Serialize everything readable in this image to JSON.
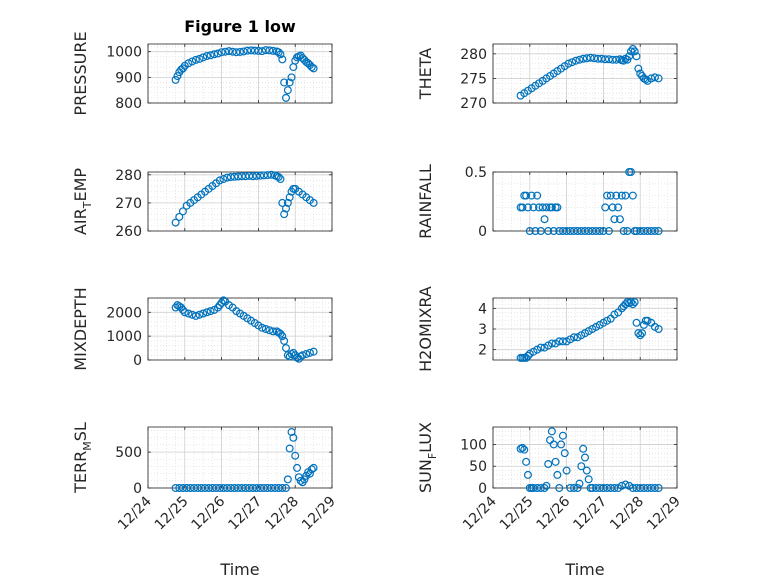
{
  "figure": {
    "title": "Figure 1 low",
    "xlabel": "Time",
    "x_tick_labels": [
      "12/24",
      "12/25",
      "12/26",
      "12/27",
      "12/28",
      "12/29"
    ],
    "marker_color": "#0072BD"
  },
  "chart_data": [
    {
      "type": "scatter",
      "ylabel": "PRESSURE",
      "title": "Figure 1 low",
      "xlim": [
        "12/24",
        "12/29"
      ],
      "ylim": [
        800,
        1030
      ],
      "yticks": [
        800,
        900,
        1000
      ],
      "grid": true,
      "marker": "open-circle",
      "x": [
        24.75,
        24.8,
        24.85,
        24.9,
        24.95,
        25.0,
        25.1,
        25.2,
        25.3,
        25.4,
        25.5,
        25.6,
        25.7,
        25.8,
        25.9,
        26.0,
        26.1,
        26.2,
        26.3,
        26.4,
        26.5,
        26.6,
        26.7,
        26.8,
        26.9,
        27.0,
        27.1,
        27.2,
        27.3,
        27.4,
        27.5,
        27.55,
        27.6,
        27.65,
        27.7,
        27.75,
        27.8,
        27.85,
        27.9,
        27.95,
        28.0,
        28.05,
        28.1,
        28.15,
        28.2,
        28.25,
        28.3,
        28.35,
        28.4,
        28.45,
        28.5
      ],
      "y": [
        890,
        905,
        920,
        930,
        935,
        945,
        955,
        962,
        968,
        972,
        978,
        983,
        986,
        990,
        993,
        998,
        1000,
        1002,
        1000,
        998,
        999,
        1001,
        1004,
        1005,
        1004,
        1003,
        1002,
        1006,
        1005,
        1003,
        1001,
        998,
        990,
        970,
        880,
        820,
        850,
        880,
        900,
        940,
        965,
        978,
        982,
        985,
        975,
        968,
        960,
        955,
        948,
        940,
        935
      ],
      "series": [
        {
          "name": "",
          "color": "#0072BD"
        }
      ]
    },
    {
      "type": "scatter",
      "ylabel": "THETA",
      "xlim": [
        "12/24",
        "12/29"
      ],
      "ylim": [
        270,
        282
      ],
      "yticks": [
        270,
        275,
        280
      ],
      "grid": true,
      "marker": "open-circle",
      "x": [
        24.75,
        24.85,
        24.95,
        25.05,
        25.15,
        25.25,
        25.35,
        25.45,
        25.55,
        25.65,
        25.75,
        25.85,
        25.95,
        26.05,
        26.15,
        26.25,
        26.35,
        26.45,
        26.55,
        26.65,
        26.75,
        26.85,
        26.95,
        27.05,
        27.15,
        27.25,
        27.35,
        27.45,
        27.5,
        27.55,
        27.6,
        27.65,
        27.7,
        27.75,
        27.8,
        27.85,
        27.9,
        27.95,
        28.0,
        28.05,
        28.1,
        28.15,
        28.2,
        28.3,
        28.4,
        28.5
      ],
      "y": [
        271.5,
        272,
        272.5,
        273,
        273.5,
        274,
        274.5,
        275,
        275.5,
        276,
        276.5,
        277,
        277.5,
        278,
        278.3,
        278.6,
        278.8,
        279,
        279.1,
        279.2,
        279.1,
        279,
        279,
        278.9,
        278.9,
        278.8,
        278.8,
        278.9,
        278.7,
        278.6,
        279,
        278.8,
        279.5,
        280.5,
        281,
        280.5,
        279.5,
        277,
        276,
        275.5,
        275,
        274.8,
        274.5,
        275,
        275.2,
        275
      ],
      "series": [
        {
          "name": "",
          "color": "#0072BD"
        }
      ]
    },
    {
      "type": "scatter",
      "ylabel": "AIR_TEMP",
      "ylabel_main": "AIR",
      "ylabel_sub": "T",
      "ylabel_tail": "EMP",
      "xlim": [
        "12/24",
        "12/29"
      ],
      "ylim": [
        260,
        281
      ],
      "yticks": [
        260,
        270,
        280
      ],
      "grid": true,
      "marker": "open-circle",
      "x": [
        24.75,
        24.85,
        24.95,
        25.05,
        25.15,
        25.25,
        25.35,
        25.45,
        25.55,
        25.65,
        25.75,
        25.85,
        25.95,
        26.05,
        26.15,
        26.25,
        26.35,
        26.45,
        26.55,
        26.65,
        26.75,
        26.85,
        26.95,
        27.05,
        27.15,
        27.25,
        27.35,
        27.45,
        27.5,
        27.55,
        27.6,
        27.65,
        27.7,
        27.75,
        27.8,
        27.85,
        27.9,
        27.95,
        28.0,
        28.1,
        28.2,
        28.3,
        28.4,
        28.5
      ],
      "y": [
        263,
        265,
        267,
        269,
        270,
        271,
        272,
        273,
        274,
        275,
        276,
        277,
        278,
        278.5,
        279,
        279.2,
        279.3,
        279.4,
        279.5,
        279.5,
        279.6,
        279.5,
        279.6,
        279.7,
        279.8,
        279.9,
        280,
        279.8,
        279.5,
        279.2,
        278.5,
        270,
        266,
        268,
        270,
        272,
        274,
        275,
        275,
        274,
        273,
        272,
        271,
        270
      ],
      "series": [
        {
          "name": "",
          "color": "#0072BD"
        }
      ]
    },
    {
      "type": "scatter",
      "ylabel": "RAINFALL",
      "xlim": [
        "12/24",
        "12/29"
      ],
      "ylim": [
        0,
        0.5
      ],
      "yticks": [
        0,
        0.5
      ],
      "grid": true,
      "marker": "open-circle",
      "x": [
        24.75,
        24.8,
        24.85,
        24.9,
        24.95,
        25.0,
        25.05,
        25.1,
        25.15,
        25.2,
        25.25,
        25.3,
        25.35,
        25.4,
        25.45,
        25.5,
        25.55,
        25.6,
        25.65,
        25.7,
        25.75,
        25.8,
        25.9,
        26.0,
        26.1,
        26.2,
        26.3,
        26.4,
        26.5,
        26.6,
        26.7,
        26.8,
        26.9,
        27.0,
        27.05,
        27.1,
        27.15,
        27.2,
        27.25,
        27.3,
        27.35,
        27.4,
        27.45,
        27.5,
        27.55,
        27.6,
        27.65,
        27.7,
        27.75,
        27.8,
        27.85,
        27.9,
        28.0,
        28.1,
        28.2,
        28.3,
        28.4,
        28.5
      ],
      "y": [
        0.2,
        0.2,
        0.3,
        0.3,
        0.2,
        0,
        0.3,
        0.2,
        0,
        0.3,
        0.2,
        0,
        0.2,
        0.1,
        0.2,
        0,
        0.2,
        0.2,
        0,
        0.2,
        0.2,
        0,
        0,
        0,
        0,
        0,
        0,
        0,
        0,
        0,
        0,
        0,
        0,
        0,
        0.2,
        0.3,
        0,
        0.3,
        0.2,
        0.1,
        0.3,
        0.2,
        0.1,
        0.3,
        0,
        0.3,
        0,
        0.5,
        0.5,
        0.3,
        0,
        0,
        0,
        0,
        0,
        0,
        0,
        0
      ],
      "series": [
        {
          "name": "",
          "color": "#0072BD"
        }
      ]
    },
    {
      "type": "scatter",
      "ylabel": "MIXDEPTH",
      "xlim": [
        "12/24",
        "12/29"
      ],
      "ylim": [
        0,
        2600
      ],
      "yticks": [
        0,
        1000,
        2000
      ],
      "grid": true,
      "marker": "open-circle",
      "x": [
        24.75,
        24.8,
        24.85,
        24.9,
        24.95,
        25.0,
        25.1,
        25.2,
        25.3,
        25.4,
        25.5,
        25.6,
        25.7,
        25.8,
        25.9,
        25.95,
        26.0,
        26.05,
        26.1,
        26.2,
        26.3,
        26.4,
        26.5,
        26.6,
        26.7,
        26.8,
        26.9,
        27.0,
        27.1,
        27.2,
        27.3,
        27.4,
        27.5,
        27.55,
        27.6,
        27.65,
        27.7,
        27.75,
        27.8,
        27.85,
        27.9,
        27.95,
        28.0,
        28.05,
        28.1,
        28.15,
        28.2,
        28.3,
        28.4,
        28.5
      ],
      "y": [
        2200,
        2300,
        2250,
        2200,
        2100,
        2000,
        1950,
        1900,
        1850,
        1900,
        1950,
        2000,
        2050,
        2100,
        2200,
        2300,
        2400,
        2500,
        2450,
        2300,
        2200,
        2050,
        1950,
        1850,
        1750,
        1650,
        1550,
        1450,
        1350,
        1300,
        1250,
        1200,
        1200,
        1150,
        1100,
        1000,
        800,
        500,
        200,
        150,
        250,
        300,
        200,
        100,
        50,
        150,
        200,
        250,
        300,
        350
      ],
      "series": [
        {
          "name": "",
          "color": "#0072BD"
        }
      ]
    },
    {
      "type": "scatter",
      "ylabel": "H2OMIXRA",
      "xlim": [
        "12/24",
        "12/29"
      ],
      "ylim": [
        1.5,
        4.5
      ],
      "yticks": [
        2,
        3,
        4
      ],
      "grid": true,
      "marker": "open-circle",
      "x": [
        24.75,
        24.8,
        24.85,
        24.9,
        24.95,
        25.0,
        25.1,
        25.2,
        25.3,
        25.4,
        25.5,
        25.6,
        25.7,
        25.8,
        25.9,
        26.0,
        26.1,
        26.2,
        26.3,
        26.4,
        26.5,
        26.6,
        26.7,
        26.8,
        26.9,
        27.0,
        27.1,
        27.2,
        27.3,
        27.4,
        27.5,
        27.55,
        27.6,
        27.65,
        27.7,
        27.75,
        27.8,
        27.85,
        27.9,
        27.95,
        28.0,
        28.05,
        28.1,
        28.15,
        28.2,
        28.3,
        28.4,
        28.5
      ],
      "y": [
        1.6,
        1.6,
        1.6,
        1.6,
        1.7,
        1.8,
        1.9,
        2.0,
        2.1,
        2.1,
        2.2,
        2.3,
        2.3,
        2.4,
        2.4,
        2.4,
        2.5,
        2.6,
        2.6,
        2.7,
        2.8,
        2.9,
        3.0,
        3.1,
        3.2,
        3.3,
        3.4,
        3.5,
        3.7,
        3.8,
        4.0,
        4.1,
        4.2,
        4.3,
        4.25,
        4.3,
        4.2,
        4.3,
        3.3,
        2.8,
        2.7,
        2.8,
        3.2,
        3.4,
        3.4,
        3.3,
        3.1,
        3.0
      ],
      "series": [
        {
          "name": "",
          "color": "#0072BD"
        }
      ]
    },
    {
      "type": "scatter",
      "ylabel": "TERR_MSL",
      "ylabel_main": "TERR",
      "ylabel_sub": "M",
      "ylabel_tail": "SL",
      "xlim": [
        "12/24",
        "12/29"
      ],
      "ylim": [
        0,
        850
      ],
      "yticks": [
        0,
        500
      ],
      "grid": true,
      "marker": "open-circle",
      "x": [
        24.75,
        24.85,
        24.95,
        25.05,
        25.15,
        25.25,
        25.35,
        25.45,
        25.55,
        25.65,
        25.75,
        25.85,
        25.95,
        26.05,
        26.15,
        26.25,
        26.35,
        26.45,
        26.55,
        26.65,
        26.75,
        26.85,
        26.95,
        27.05,
        27.15,
        27.25,
        27.35,
        27.45,
        27.55,
        27.65,
        27.75,
        27.8,
        27.85,
        27.9,
        27.95,
        28.0,
        28.05,
        28.1,
        28.15,
        28.2,
        28.25,
        28.3,
        28.35,
        28.4,
        28.45,
        28.5
      ],
      "y": [
        0,
        0,
        0,
        0,
        0,
        0,
        0,
        0,
        0,
        0,
        0,
        0,
        0,
        0,
        0,
        0,
        0,
        0,
        0,
        0,
        0,
        0,
        0,
        0,
        0,
        0,
        0,
        0,
        0,
        0,
        0,
        120,
        550,
        780,
        700,
        450,
        280,
        150,
        100,
        80,
        120,
        170,
        220,
        200,
        260,
        280
      ],
      "series": [
        {
          "name": "",
          "color": "#0072BD"
        }
      ]
    },
    {
      "type": "scatter",
      "ylabel": "SUN_FLUX",
      "ylabel_main": "SUN",
      "ylabel_sub": "F",
      "ylabel_tail": "LUX",
      "xlim": [
        "12/24",
        "12/29"
      ],
      "ylim": [
        0,
        140
      ],
      "yticks": [
        0,
        50,
        100
      ],
      "grid": true,
      "marker": "open-circle",
      "x": [
        24.75,
        24.8,
        24.85,
        24.9,
        24.95,
        25.0,
        25.05,
        25.1,
        25.2,
        25.3,
        25.4,
        25.45,
        25.5,
        25.55,
        25.6,
        25.65,
        25.7,
        25.75,
        25.8,
        25.85,
        25.9,
        25.95,
        26.0,
        26.1,
        26.2,
        26.3,
        26.35,
        26.4,
        26.45,
        26.5,
        26.55,
        26.6,
        26.65,
        26.7,
        26.8,
        26.9,
        27.0,
        27.1,
        27.2,
        27.3,
        27.4,
        27.5,
        27.6,
        27.7,
        27.8,
        27.9,
        28.0,
        28.1,
        28.2,
        28.3,
        28.4,
        28.5
      ],
      "y": [
        90,
        92,
        88,
        60,
        30,
        0,
        0,
        0,
        0,
        0,
        0,
        5,
        55,
        110,
        130,
        100,
        60,
        30,
        0,
        100,
        120,
        80,
        40,
        0,
        0,
        0,
        10,
        50,
        90,
        70,
        40,
        20,
        0,
        0,
        0,
        0,
        0,
        0,
        0,
        0,
        0,
        5,
        8,
        5,
        0,
        0,
        0,
        0,
        0,
        0,
        0,
        0
      ],
      "series": [
        {
          "name": "",
          "color": "#0072BD"
        }
      ]
    }
  ]
}
